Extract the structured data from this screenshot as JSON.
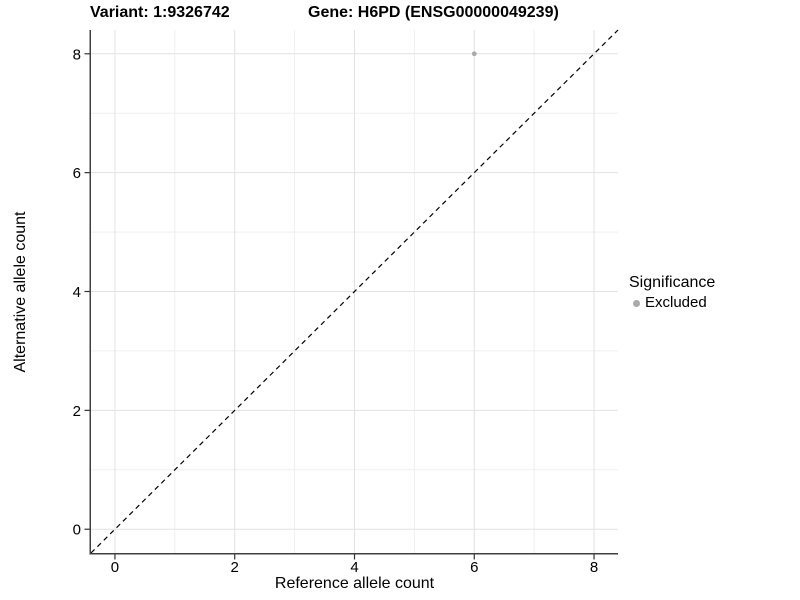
{
  "chart_data": {
    "type": "scatter",
    "title_left": "Variant: 1:9326742",
    "title_right": "Gene: H6PD (ENSG00000049239)",
    "xlabel": "Reference allele count",
    "ylabel": "Alternative allele count",
    "xlim": [
      -0.4,
      8.4
    ],
    "ylim": [
      -0.4,
      8.4
    ],
    "x_ticks": [
      0,
      2,
      4,
      6,
      8
    ],
    "y_ticks": [
      0,
      2,
      4,
      6,
      8
    ],
    "x_minor_ticks": [
      1,
      3,
      5,
      7
    ],
    "y_minor_ticks": [
      1,
      3,
      5,
      7
    ],
    "grid": true,
    "points": [
      {
        "x": 6,
        "y": 8,
        "significance": "Excluded"
      }
    ],
    "reference_line": {
      "kind": "identity",
      "slope": 1,
      "intercept": 0,
      "style": "dashed"
    },
    "legend": {
      "position": "right",
      "title": "Significance",
      "entries": [
        {
          "label": "Excluded",
          "marker": "circle",
          "color": "#aaaaaa"
        }
      ]
    }
  },
  "colors": {
    "background": "#ffffff",
    "point": "#aaaaaa",
    "grid_major": "#e2e2e2",
    "grid_minor": "#efefef",
    "axis_line": "#404040",
    "tick_mark": "#333333",
    "text": "#000000",
    "reference_line": "#000000"
  }
}
